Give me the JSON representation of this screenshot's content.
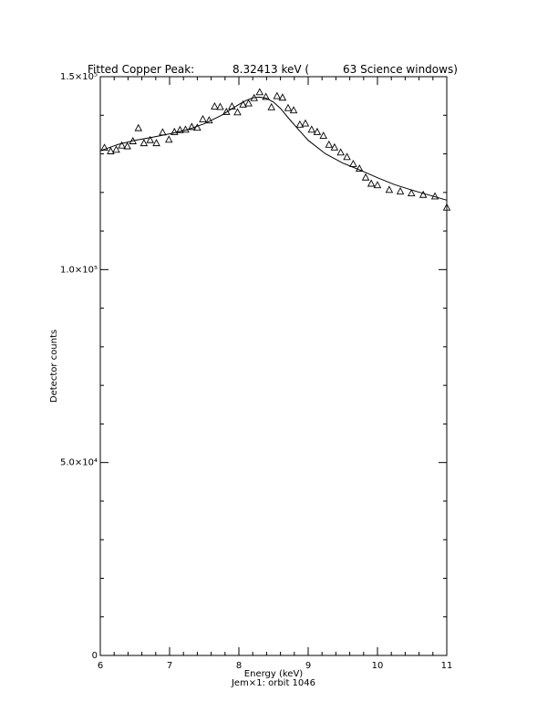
{
  "chart_data": {
    "type": "scatter",
    "title_parts": [
      "Fitted Copper Peak:",
      "8.32413 keV (",
      "63 Science windows)"
    ],
    "xlabel": "Energy (keV)",
    "xlabel2": "Jem×1: orbit 1046",
    "ylabel": "Detector counts",
    "xlim": [
      6,
      11
    ],
    "ylim": [
      0,
      150000
    ],
    "x_ticks": [
      6,
      7,
      8,
      9,
      10,
      11
    ],
    "x_tick_labels": [
      "6",
      "7",
      "8",
      "9",
      "10",
      "11"
    ],
    "y_ticks": [
      0,
      50000,
      100000,
      150000
    ],
    "y_tick_labels": [
      "0",
      "5.0×10⁴",
      "1.0×10⁵",
      "1.5×10⁵"
    ],
    "grid": false,
    "series": [
      {
        "marker": "triangle",
        "x": [
          6.06,
          6.15,
          6.23,
          6.31,
          6.39,
          6.47,
          6.55,
          6.63,
          6.72,
          6.81,
          6.9,
          6.99,
          7.07,
          7.15,
          7.23,
          7.32,
          7.4,
          7.48,
          7.57,
          7.65,
          7.73,
          7.82,
          7.9,
          7.98,
          8.06,
          8.14,
          8.22,
          8.3,
          8.39,
          8.47,
          8.55,
          8.63,
          8.71,
          8.79,
          8.88,
          8.96,
          9.05,
          9.13,
          9.22,
          9.3,
          9.38,
          9.47,
          9.56,
          9.65,
          9.74,
          9.83,
          9.91,
          10.0,
          10.17,
          10.33,
          10.49,
          10.66,
          10.83,
          11.0
        ],
        "y": [
          131500,
          130600,
          131000,
          132100,
          131900,
          133200,
          136600,
          132700,
          133500,
          132700,
          135500,
          133600,
          135600,
          136100,
          136200,
          136900,
          136700,
          138900,
          138600,
          142200,
          142100,
          140800,
          142200,
          140700,
          142700,
          143000,
          144400,
          145900,
          144700,
          142000,
          144900,
          144500,
          141800,
          141200,
          137500,
          137800,
          136200,
          135600,
          134600,
          132300,
          131600,
          130300,
          129100,
          127300,
          126100,
          123800,
          122200,
          121800,
          120600,
          120200,
          119700,
          119300,
          118900,
          116000
        ]
      },
      {
        "marker": "line",
        "x": [
          6.0,
          6.25,
          6.5,
          6.75,
          7.0,
          7.25,
          7.5,
          7.75,
          7.9,
          8.0,
          8.1,
          8.2,
          8.3,
          8.4,
          8.5,
          8.6,
          8.7,
          8.85,
          9.0,
          9.25,
          9.5,
          9.75,
          10.0,
          10.25,
          10.5,
          10.75,
          11.0
        ],
        "y": [
          130800,
          132400,
          133500,
          134300,
          135200,
          136200,
          137800,
          140000,
          141700,
          142800,
          143800,
          144500,
          144700,
          144400,
          143400,
          141800,
          139600,
          136500,
          133500,
          130000,
          127600,
          125800,
          123800,
          122000,
          120600,
          119300,
          118000
        ]
      }
    ]
  }
}
